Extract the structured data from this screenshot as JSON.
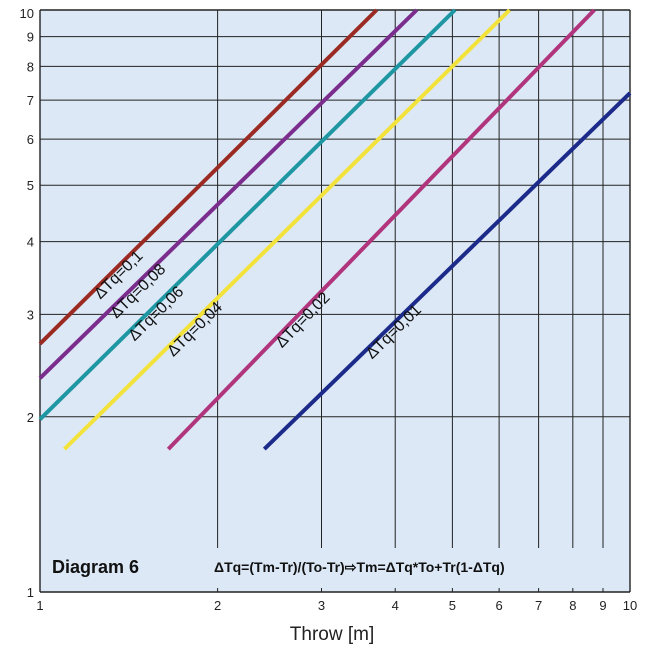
{
  "chart_data": {
    "type": "line",
    "title": "Diagram 6",
    "formula": "ΔTq=(Tm-Tr)/(To-Tr)⇨Tm=ΔTq*To+Tr(1-ΔTq)",
    "xlabel": "Throw [m]",
    "ylabel": "",
    "xscale": "log",
    "yscale": "log",
    "xlim": [
      1,
      10
    ],
    "ylim": [
      1,
      10
    ],
    "grid": true,
    "x_ticks": [
      1,
      2,
      3,
      4,
      5,
      6,
      7,
      8,
      9,
      10
    ],
    "y_ticks": [
      1,
      2,
      3,
      4,
      5,
      6,
      7,
      8,
      9,
      10
    ],
    "series": [
      {
        "name": "ΔTq=0,1",
        "color": "#9b2a22",
        "x": [
          1,
          3.72
        ],
        "y": [
          2.67,
          10
        ]
      },
      {
        "name": "ΔTq=0,08",
        "color": "#7b2d8e",
        "x": [
          1,
          4.35
        ],
        "y": [
          2.33,
          10
        ]
      },
      {
        "name": "ΔTq=0,06",
        "color": "#1f97a3",
        "x": [
          1,
          5.05
        ],
        "y": [
          1.98,
          10
        ]
      },
      {
        "name": "ΔTq=0,04",
        "color": "#f2e23a",
        "x": [
          1.1,
          6.25
        ],
        "y": [
          1.76,
          10
        ]
      },
      {
        "name": "ΔTq=0,02",
        "color": "#b0357d",
        "x": [
          1.65,
          8.7
        ],
        "y": [
          1.76,
          10
        ]
      },
      {
        "name": "ΔTq=0,01",
        "color": "#1c2a8a",
        "x": [
          2.4,
          10
        ],
        "y": [
          1.76,
          7.2
        ]
      }
    ]
  }
}
